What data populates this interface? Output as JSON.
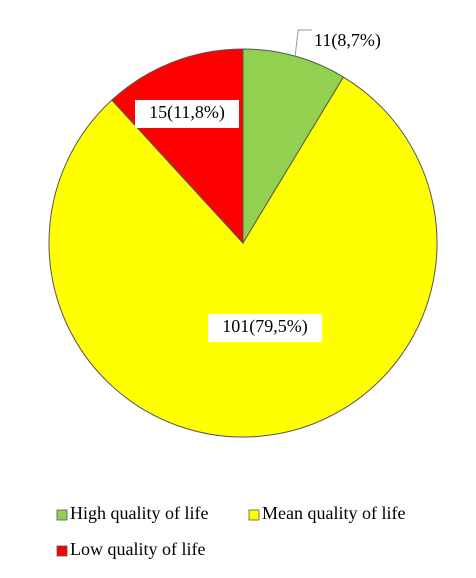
{
  "chart_data": {
    "type": "pie",
    "categories": [
      "High quality of life",
      "Mean quality of life",
      "Low quality of life"
    ],
    "values": [
      11,
      101,
      15
    ],
    "value_labels": [
      "11(8,7%)",
      "101(79,5%)",
      "15(11,8%)"
    ],
    "colors": [
      "#92d050",
      "#ffff00",
      "#ff0000"
    ],
    "legend": "bottom"
  }
}
